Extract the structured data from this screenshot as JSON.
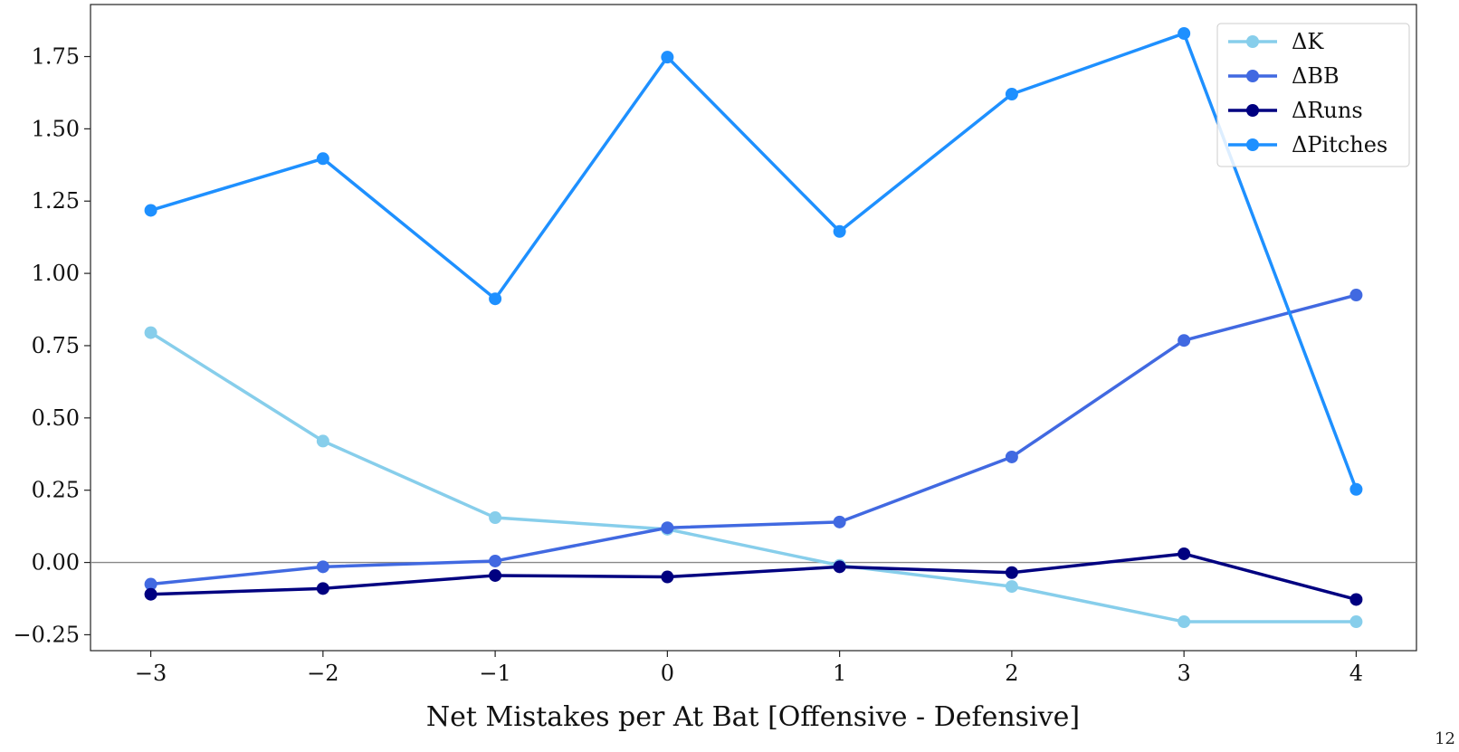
{
  "chart_data": {
    "type": "line",
    "xlabel": "Net Mistakes per At Bat [Offensive - Defensive]",
    "ylabel": "",
    "x": [
      -3,
      -2,
      -1,
      0,
      1,
      2,
      3,
      4
    ],
    "xlim": [
      -3.35,
      4.35
    ],
    "ylim": [
      -0.305,
      1.93
    ],
    "xticks": [
      -3,
      -2,
      -1,
      0,
      1,
      2,
      3,
      4
    ],
    "xtick_labels": [
      "−3",
      "−2",
      "−1",
      "0",
      "1",
      "2",
      "3",
      "4"
    ],
    "yticks": [
      -0.25,
      0,
      0.25,
      0.5,
      0.75,
      1.0,
      1.25,
      1.5,
      1.75
    ],
    "ytick_labels": [
      "−0.25",
      "0.00",
      "0.25",
      "0.50",
      "0.75",
      "1.00",
      "1.25",
      "1.50",
      "1.75"
    ],
    "reference_line_y": 0,
    "grid": false,
    "legend_position": "top-right",
    "series": [
      {
        "name": "ΔK",
        "color": "#87CEEB",
        "values": [
          0.795,
          0.42,
          0.155,
          0.115,
          -0.01,
          -0.083,
          -0.205,
          -0.205
        ]
      },
      {
        "name": "ΔBB",
        "color": "#4169E1",
        "values": [
          -0.075,
          -0.015,
          0.005,
          0.12,
          0.14,
          0.365,
          0.768,
          0.925
        ]
      },
      {
        "name": "ΔRuns",
        "color": "#000080",
        "values": [
          -0.11,
          -0.09,
          -0.045,
          -0.05,
          -0.015,
          -0.035,
          0.03,
          -0.128
        ]
      },
      {
        "name": "ΔPitches",
        "color": "#1E90FF",
        "values": [
          1.218,
          1.397,
          0.912,
          1.748,
          1.145,
          1.62,
          1.83,
          0.253
        ]
      }
    ]
  },
  "page_number": "12"
}
